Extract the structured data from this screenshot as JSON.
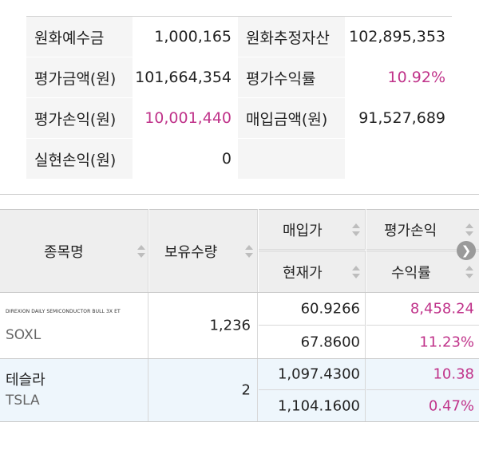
{
  "summary": {
    "deposit_label": "원화예수금",
    "deposit_value": "1,000,165",
    "est_assets_label": "원화추정자산",
    "est_assets_value": "102,895,353",
    "eval_amount_label": "평가금액(원)",
    "eval_amount_value": "101,664,354",
    "eval_return_label": "평가수익률",
    "eval_return_value": "10.92%",
    "eval_pl_label": "평가손익(원)",
    "eval_pl_value": "10,001,440",
    "purchase_amount_label": "매입금액(원)",
    "purchase_amount_value": "91,527,689",
    "realized_pl_label": "실현손익(원)",
    "realized_pl_value": "0"
  },
  "holdings": {
    "headers": {
      "name": "종목명",
      "quantity": "보유수량",
      "buy_price": "매입가",
      "eval_pl": "평가손익",
      "current_price": "현재가",
      "return_rate": "수익률"
    },
    "scroll_icon": "chevron-right-circle-icon",
    "rows": [
      {
        "full_name": "DIREXION DAILY SEMICONDUCTOR BULL 3X ET",
        "ticker": "SOXL",
        "quantity": "1,236",
        "buy_price": "60.9266",
        "eval_pl": "8,458.24",
        "current_price": "67.8600",
        "return_rate": "11.23%"
      },
      {
        "name": "테슬라",
        "ticker": "TSLA",
        "quantity": "2",
        "buy_price": "1,097.4300",
        "eval_pl": "10.38",
        "current_price": "1,104.1600",
        "return_rate": "0.47%"
      }
    ]
  },
  "colors": {
    "profit": "#c0338a",
    "header_bg": "#eeeeee",
    "highlight_row_bg": "#eef6fc"
  }
}
